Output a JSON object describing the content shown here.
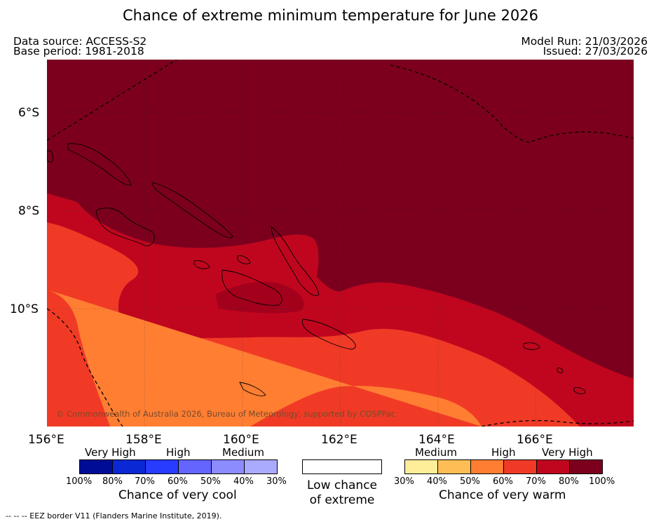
{
  "title": "Chance of extreme minimum temperature for June 2026",
  "data_source": "Data source: ACCESS-S2",
  "base_period": "Base period: 1981-2018",
  "model_run": "Model Run: 21/03/2026",
  "issued": "Issued: 27/03/2026",
  "copyright": "© Commonwealth of Australia 2026, Bureau of Meteorology, supported by COSPPac",
  "footer": "--  --  -- EEZ border V11 (Flanders Marine Institute, 2019).",
  "lat_labels": [
    "6°S",
    "8°S",
    "10°S"
  ],
  "lon_labels": [
    "156°E",
    "158°E",
    "160°E",
    "162°E",
    "164°E",
    "166°E"
  ],
  "cool_legend": {
    "categories": [
      "Very High",
      "High",
      "Medium"
    ],
    "ticks": [
      "100%",
      "80%",
      "70%",
      "60%",
      "50%",
      "40%",
      "30%"
    ],
    "colors": [
      "#000c96",
      "#0a28d4",
      "#283cff",
      "#6464ff",
      "#8c8cff",
      "#aaaaff"
    ],
    "label": "Chance of very cool"
  },
  "neutral_legend": {
    "line1": "Low chance",
    "line2": "of extreme",
    "color": "#ffffff"
  },
  "warm_legend": {
    "categories": [
      "Medium",
      "High",
      "Very High"
    ],
    "ticks": [
      "30%",
      "40%",
      "50%",
      "60%",
      "70%",
      "80%",
      "100%"
    ],
    "colors": [
      "#ffee99",
      "#ffbe55",
      "#ff7e32",
      "#f03a26",
      "#c0061e",
      "#7c001e"
    ],
    "label": "Chance of very warm"
  }
}
